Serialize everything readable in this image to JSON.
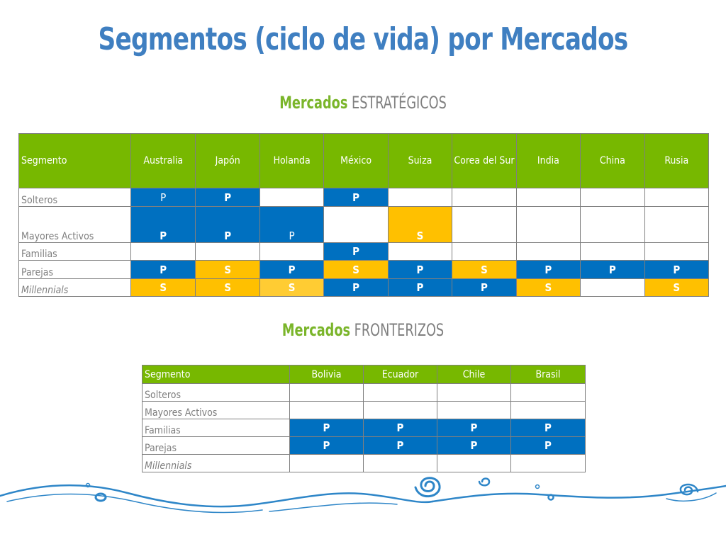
{
  "title": "Segmentos (ciclo de vida) por Mercados",
  "strategic": {
    "heading_bold": "Mercados",
    "heading_rest": "ESTRATÉGICOS",
    "header_first": "Segmento",
    "columns": [
      "Australia",
      "Japón",
      "Holanda",
      "México",
      "Suiza",
      "Corea del Sur",
      "India",
      "China",
      "Rusia"
    ],
    "rows": [
      {
        "label": "Solteros",
        "italic": false,
        "cells": [
          {
            "v": "P",
            "c": "blue",
            "thin": true
          },
          {
            "v": "P",
            "c": "blue"
          },
          {
            "v": "",
            "c": ""
          },
          {
            "v": "P",
            "c": "blue"
          },
          {
            "v": "",
            "c": ""
          },
          {
            "v": "",
            "c": ""
          },
          {
            "v": "",
            "c": ""
          },
          {
            "v": "",
            "c": ""
          },
          {
            "v": "",
            "c": ""
          }
        ]
      },
      {
        "label": "Mayores Activos",
        "italic": false,
        "cells": [
          {
            "v": "P",
            "c": "blue"
          },
          {
            "v": "P",
            "c": "blue"
          },
          {
            "v": "P",
            "c": "blue",
            "thin": true
          },
          {
            "v": "",
            "c": ""
          },
          {
            "v": "S",
            "c": "yellow"
          },
          {
            "v": "",
            "c": ""
          },
          {
            "v": "",
            "c": ""
          },
          {
            "v": "",
            "c": ""
          },
          {
            "v": "",
            "c": ""
          }
        ]
      },
      {
        "label": "Familias",
        "italic": false,
        "cells": [
          {
            "v": "",
            "c": ""
          },
          {
            "v": "",
            "c": ""
          },
          {
            "v": "",
            "c": ""
          },
          {
            "v": "P",
            "c": "blue"
          },
          {
            "v": "",
            "c": ""
          },
          {
            "v": "",
            "c": ""
          },
          {
            "v": "",
            "c": ""
          },
          {
            "v": "",
            "c": ""
          },
          {
            "v": "",
            "c": ""
          }
        ]
      },
      {
        "label": "Parejas",
        "italic": false,
        "cells": [
          {
            "v": "P",
            "c": "blue"
          },
          {
            "v": "S",
            "c": "yellow"
          },
          {
            "v": "P",
            "c": "blue"
          },
          {
            "v": "S",
            "c": "yellow"
          },
          {
            "v": "P",
            "c": "blue"
          },
          {
            "v": "S",
            "c": "yellow"
          },
          {
            "v": "P",
            "c": "blue"
          },
          {
            "v": "P",
            "c": "blue"
          },
          {
            "v": "P",
            "c": "blue"
          }
        ]
      },
      {
        "label": "Millennials",
        "italic": true,
        "cells": [
          {
            "v": "S",
            "c": "yellow"
          },
          {
            "v": "S",
            "c": "yellow"
          },
          {
            "v": "S",
            "c": "lyellow"
          },
          {
            "v": "P",
            "c": "blue"
          },
          {
            "v": "P",
            "c": "blue"
          },
          {
            "v": "P",
            "c": "blue"
          },
          {
            "v": "S",
            "c": "yellow"
          },
          {
            "v": "",
            "c": ""
          },
          {
            "v": "S",
            "c": "yellow"
          }
        ]
      }
    ]
  },
  "border": {
    "heading_bold": "Mercados",
    "heading_rest": "FRONTERIZOS",
    "header_first": "Segmento",
    "columns": [
      "Bolivia",
      "Ecuador",
      "Chile",
      "Brasil"
    ],
    "rows": [
      {
        "label": "Solteros",
        "italic": false,
        "cells": [
          {
            "v": "",
            "c": ""
          },
          {
            "v": "",
            "c": ""
          },
          {
            "v": "",
            "c": ""
          },
          {
            "v": "",
            "c": ""
          }
        ]
      },
      {
        "label": "Mayores Activos",
        "italic": false,
        "cells": [
          {
            "v": "",
            "c": ""
          },
          {
            "v": "",
            "c": ""
          },
          {
            "v": "",
            "c": ""
          },
          {
            "v": "",
            "c": ""
          }
        ]
      },
      {
        "label": "Familias",
        "italic": false,
        "cells": [
          {
            "v": "P",
            "c": "blue"
          },
          {
            "v": "P",
            "c": "blue"
          },
          {
            "v": "P",
            "c": "blue"
          },
          {
            "v": "P",
            "c": "blue"
          }
        ]
      },
      {
        "label": "Parejas",
        "italic": false,
        "cells": [
          {
            "v": "P",
            "c": "blue"
          },
          {
            "v": "P",
            "c": "blue"
          },
          {
            "v": "P",
            "c": "blue"
          },
          {
            "v": "P",
            "c": "blue"
          }
        ]
      },
      {
        "label": "Millennials",
        "italic": true,
        "cells": [
          {
            "v": "",
            "c": ""
          },
          {
            "v": "",
            "c": ""
          },
          {
            "v": "",
            "c": ""
          },
          {
            "v": "",
            "c": ""
          }
        ]
      }
    ]
  },
  "colors": {
    "title": "#3f7fc1",
    "header_green": "#77b800",
    "primary_blue": "#0070c0",
    "secondary_yellow": "#ffc000",
    "heading_green": "#7ab52a",
    "wave_blue": "#2e86c8"
  },
  "decoration": "blue-wave-swirl-border"
}
